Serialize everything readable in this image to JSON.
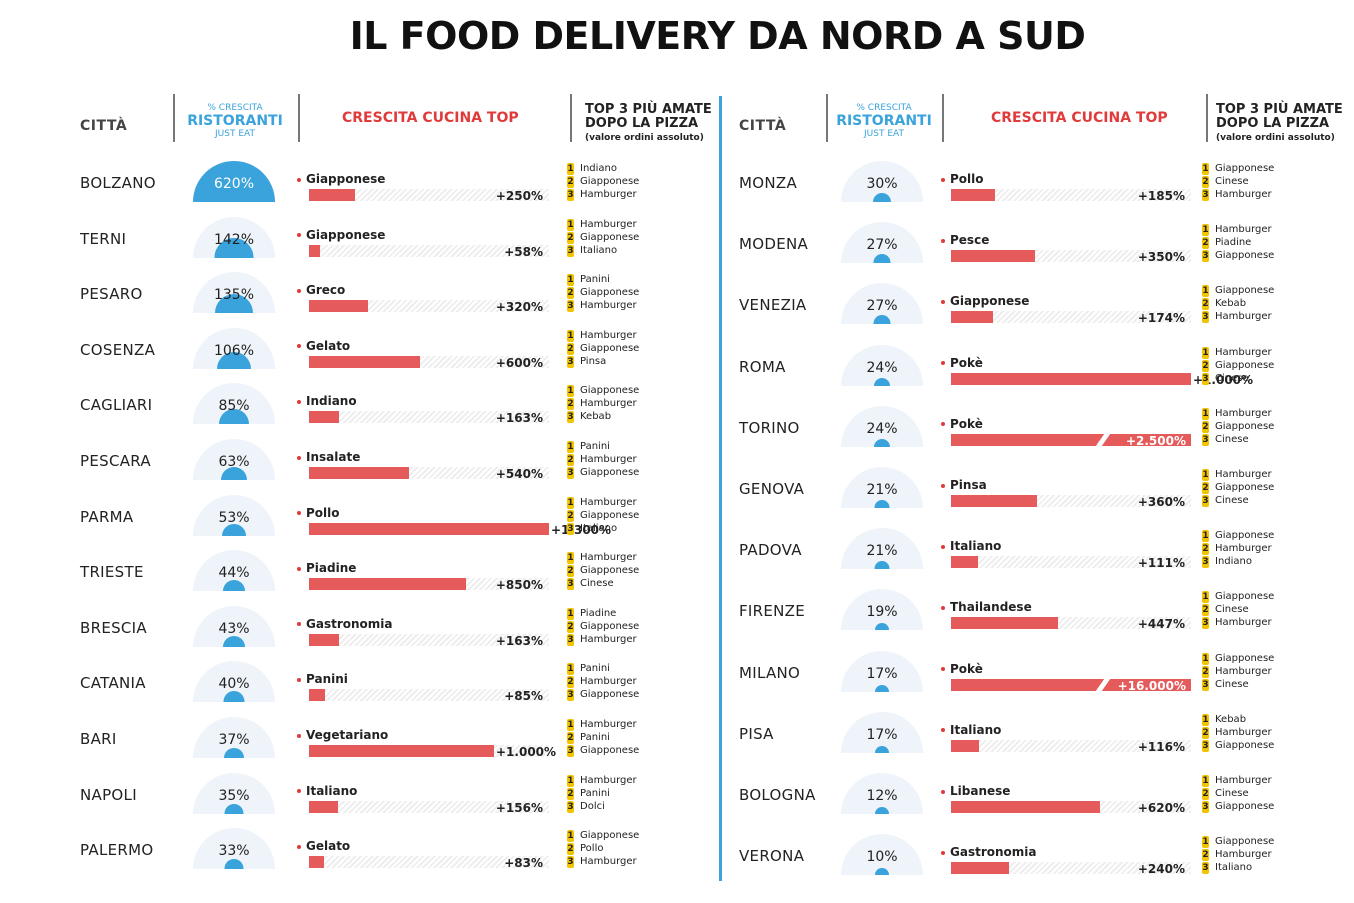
{
  "title": "IL FOOD DELIVERY DA NORD A SUD",
  "headers": {
    "city": "CITTÀ",
    "growth_small_top": "% CRESCITA",
    "growth_big": "RISTORANTI",
    "growth_small_bottom": "JUST EAT",
    "cuisine": "CRESCITA CUCINA TOP",
    "top3_line1": "TOP 3 PIÙ AMATE",
    "top3_line2": "DOPO LA PIZZA",
    "top3_sub": "(valore ordini assoluto)"
  },
  "colors": {
    "accent_blue": "#3aa3dc",
    "bar_red": "#e55b5b",
    "title_red": "#e03a3a",
    "rank_yellow": "#f2c300"
  },
  "chart_data": [
    {
      "type": "bar",
      "panel": "left",
      "series": [
        {
          "city": "BOLZANO",
          "growth": 620,
          "growth_label": "620%",
          "cuisine": "Giapponese",
          "cuisine_growth": 250,
          "cuisine_label": "+250%",
          "top3": [
            "Indiano",
            "Giapponese",
            "Hamburger"
          ]
        },
        {
          "city": "TERNI",
          "growth": 142,
          "growth_label": "142%",
          "cuisine": "Giapponese",
          "cuisine_growth": 58,
          "cuisine_label": "+58%",
          "top3": [
            "Hamburger",
            "Giapponese",
            "Italiano"
          ]
        },
        {
          "city": "PESARO",
          "growth": 135,
          "growth_label": "135%",
          "cuisine": "Greco",
          "cuisine_growth": 320,
          "cuisine_label": "+320%",
          "top3": [
            "Panini",
            "Giapponese",
            "Hamburger"
          ]
        },
        {
          "city": "COSENZA",
          "growth": 106,
          "growth_label": "106%",
          "cuisine": "Gelato",
          "cuisine_growth": 600,
          "cuisine_label": "+600%",
          "top3": [
            "Hamburger",
            "Giapponese",
            "Pinsa"
          ]
        },
        {
          "city": "CAGLIARI",
          "growth": 85,
          "growth_label": "85%",
          "cuisine": "Indiano",
          "cuisine_growth": 163,
          "cuisine_label": "+163%",
          "top3": [
            "Giapponese",
            "Hamburger",
            "Kebab"
          ]
        },
        {
          "city": "PESCARA",
          "growth": 63,
          "growth_label": "63%",
          "cuisine": "Insalate",
          "cuisine_growth": 540,
          "cuisine_label": "+540%",
          "top3": [
            "Panini",
            "Hamburger",
            "Giapponese"
          ]
        },
        {
          "city": "PARMA",
          "growth": 53,
          "growth_label": "53%",
          "cuisine": "Pollo",
          "cuisine_growth": 1300,
          "cuisine_label": "+1.300%",
          "top3": [
            "Hamburger",
            "Giapponese",
            "Italiano"
          ]
        },
        {
          "city": "TRIESTE",
          "growth": 44,
          "growth_label": "44%",
          "cuisine": "Piadine",
          "cuisine_growth": 850,
          "cuisine_label": "+850%",
          "top3": [
            "Hamburger",
            "Giapponese",
            "Cinese"
          ]
        },
        {
          "city": "BRESCIA",
          "growth": 43,
          "growth_label": "43%",
          "cuisine": "Gastronomia",
          "cuisine_growth": 163,
          "cuisine_label": "+163%",
          "top3": [
            "Piadine",
            "Giapponese",
            "Hamburger"
          ]
        },
        {
          "city": "CATANIA",
          "growth": 40,
          "growth_label": "40%",
          "cuisine": "Panini",
          "cuisine_growth": 85,
          "cuisine_label": "+85%",
          "top3": [
            "Panini",
            "Hamburger",
            "Giapponese"
          ]
        },
        {
          "city": "BARI",
          "growth": 37,
          "growth_label": "37%",
          "cuisine": "Vegetariano",
          "cuisine_growth": 1000,
          "cuisine_label": "+1.000%",
          "top3": [
            "Hamburger",
            "Panini",
            "Giapponese"
          ]
        },
        {
          "city": "NAPOLI",
          "growth": 35,
          "growth_label": "35%",
          "cuisine": "Italiano",
          "cuisine_growth": 156,
          "cuisine_label": "+156%",
          "top3": [
            "Hamburger",
            "Panini",
            "Dolci"
          ]
        },
        {
          "city": "PALERMO",
          "growth": 33,
          "growth_label": "33%",
          "cuisine": "Gelato",
          "cuisine_growth": 83,
          "cuisine_label": "+83%",
          "top3": [
            "Giapponese",
            "Pollo",
            "Hamburger"
          ]
        }
      ]
    },
    {
      "type": "bar",
      "panel": "right",
      "series": [
        {
          "city": "MONZA",
          "growth": 30,
          "growth_label": "30%",
          "cuisine": "Pollo",
          "cuisine_growth": 185,
          "cuisine_label": "+185%",
          "top3": [
            "Giapponese",
            "Cinese",
            "Hamburger"
          ]
        },
        {
          "city": "MODENA",
          "growth": 27,
          "growth_label": "27%",
          "cuisine": "Pesce",
          "cuisine_growth": 350,
          "cuisine_label": "+350%",
          "top3": [
            "Hamburger",
            "Piadine",
            "Giapponese"
          ]
        },
        {
          "city": "VENEZIA",
          "growth": 27,
          "growth_label": "27%",
          "cuisine": "Giapponese",
          "cuisine_growth": 174,
          "cuisine_label": "+174%",
          "top3": [
            "Giapponese",
            "Kebab",
            "Hamburger"
          ]
        },
        {
          "city": "ROMA",
          "growth": 24,
          "growth_label": "24%",
          "cuisine": "Pokè",
          "cuisine_growth": 1000,
          "cuisine_label": "+1.000%",
          "top3": [
            "Hamburger",
            "Giapponese",
            "Cinese"
          ]
        },
        {
          "city": "TORINO",
          "growth": 24,
          "growth_label": "24%",
          "cuisine": "Pokè",
          "cuisine_growth": 2500,
          "cuisine_label": "+2.500%",
          "top3": [
            "Hamburger",
            "Giapponese",
            "Cinese"
          ]
        },
        {
          "city": "GENOVA",
          "growth": 21,
          "growth_label": "21%",
          "cuisine": "Pinsa",
          "cuisine_growth": 360,
          "cuisine_label": "+360%",
          "top3": [
            "Hamburger",
            "Giapponese",
            "Cinese"
          ]
        },
        {
          "city": "PADOVA",
          "growth": 21,
          "growth_label": "21%",
          "cuisine": "Italiano",
          "cuisine_growth": 111,
          "cuisine_label": "+111%",
          "top3": [
            "Giapponese",
            "Hamburger",
            "Indiano"
          ]
        },
        {
          "city": "FIRENZE",
          "growth": 19,
          "growth_label": "19%",
          "cuisine": "Thailandese",
          "cuisine_growth": 447,
          "cuisine_label": "+447%",
          "top3": [
            "Giapponese",
            "Cinese",
            "Hamburger"
          ]
        },
        {
          "city": "MILANO",
          "growth": 17,
          "growth_label": "17%",
          "cuisine": "Pokè",
          "cuisine_growth": 16000,
          "cuisine_label": "+16.000%",
          "top3": [
            "Giapponese",
            "Hamburger",
            "Cinese"
          ]
        },
        {
          "city": "PISA",
          "growth": 17,
          "growth_label": "17%",
          "cuisine": "Italiano",
          "cuisine_growth": 116,
          "cuisine_label": "+116%",
          "top3": [
            "Kebab",
            "Hamburger",
            "Giapponese"
          ]
        },
        {
          "city": "BOLOGNA",
          "growth": 12,
          "growth_label": "12%",
          "cuisine": "Libanese",
          "cuisine_growth": 620,
          "cuisine_label": "+620%",
          "top3": [
            "Hamburger",
            "Cinese",
            "Giapponese"
          ]
        },
        {
          "city": "VERONA",
          "growth": 10,
          "growth_label": "10%",
          "cuisine": "Gastronomia",
          "cuisine_growth": 240,
          "cuisine_label": "+240%",
          "top3": [
            "Giapponese",
            "Hamburger",
            "Italiano"
          ]
        }
      ]
    }
  ]
}
